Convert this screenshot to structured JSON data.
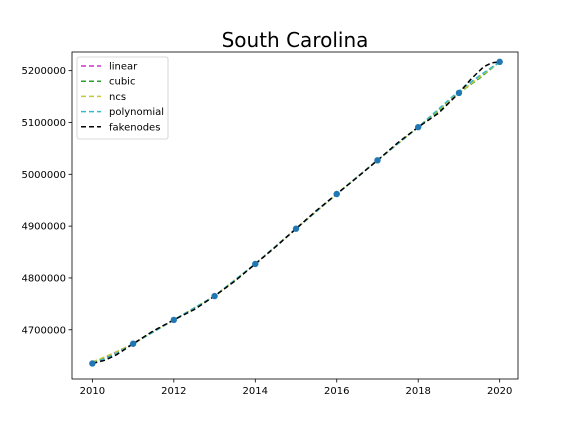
{
  "chart_data": {
    "type": "line",
    "title": "South Carolina",
    "xlabel": "",
    "ylabel": "",
    "xlim": [
      2009.5,
      2020.45
    ],
    "ylim": [
      4605000,
      5236000
    ],
    "x_ticks": [
      2010,
      2012,
      2014,
      2016,
      2018,
      2020
    ],
    "x_tick_labels": [
      "2010",
      "2012",
      "2014",
      "2016",
      "2018",
      "2020"
    ],
    "y_ticks": [
      4700000,
      4800000,
      4900000,
      5000000,
      5100000,
      5200000
    ],
    "y_tick_labels": [
      "4700000",
      "4800000",
      "4900000",
      "5000000",
      "5100000",
      "5200000"
    ],
    "grid": false,
    "legend_position": "upper-left",
    "points": {
      "name": "data",
      "color": "#1f77b4",
      "x": [
        2010,
        2011,
        2012,
        2013,
        2014,
        2015,
        2016,
        2017,
        2018,
        2019,
        2020
      ],
      "y": [
        4635000,
        4673000,
        4719000,
        4765000,
        4827000,
        4895000,
        4962000,
        5027000,
        5091000,
        5157000,
        5217000
      ]
    },
    "series": [
      {
        "name": "linear",
        "color": "#cc33cc",
        "x": [
          2010,
          2011,
          2012,
          2013,
          2014,
          2015,
          2016,
          2017,
          2018,
          2019,
          2020
        ],
        "y": [
          4635000,
          4673000,
          4719000,
          4765000,
          4827000,
          4895000,
          4962000,
          5027000,
          5091000,
          5157000,
          5217000
        ]
      },
      {
        "name": "cubic",
        "color": "#2ca02c",
        "x": [
          2010,
          2010.5,
          2011,
          2011.5,
          2012,
          2013,
          2014,
          2015,
          2016,
          2017,
          2018,
          2018.5,
          2019,
          2019.5,
          2020
        ],
        "y": [
          4635000,
          4651000,
          4673000,
          4697000,
          4719000,
          4765000,
          4827000,
          4895000,
          4962000,
          5027000,
          5091000,
          5122000,
          5157000,
          5185000,
          5217000
        ]
      },
      {
        "name": "ncs",
        "color": "#c8c83a",
        "x": [
          2010,
          2010.5,
          2011,
          2012,
          2013,
          2014,
          2015,
          2016,
          2017,
          2018,
          2019,
          2019.5,
          2020
        ],
        "y": [
          4638000,
          4654000,
          4673000,
          4719000,
          4765000,
          4827000,
          4895000,
          4962000,
          5027000,
          5091000,
          5157000,
          5187000,
          5217000
        ]
      },
      {
        "name": "polynomial",
        "color": "#33bbcc",
        "x": [
          2010,
          2010.5,
          2011,
          2012,
          2013,
          2014,
          2015,
          2016,
          2017,
          2018,
          2018.5,
          2019,
          2019.5,
          2020
        ],
        "y": [
          4635000,
          4650000,
          4673000,
          4719000,
          4765000,
          4827000,
          4895000,
          4962000,
          5027000,
          5091000,
          5126000,
          5161000,
          5190000,
          5217000
        ]
      },
      {
        "name": "fakenodes",
        "color": "#000000",
        "x": [
          2010,
          2010.3,
          2010.6,
          2011,
          2011.5,
          2012,
          2012.5,
          2013,
          2013.5,
          2014,
          2014.5,
          2015,
          2015.5,
          2016,
          2016.5,
          2017,
          2017.5,
          2018,
          2018.5,
          2019,
          2019.3,
          2019.6,
          2019.8,
          2020
        ],
        "y": [
          4635000,
          4641000,
          4652000,
          4673000,
          4698000,
          4719000,
          4739000,
          4765000,
          4794000,
          4827000,
          4860000,
          4895000,
          4930000,
          4962000,
          4994000,
          5027000,
          5061000,
          5091000,
          5118000,
          5157000,
          5184000,
          5207000,
          5215000,
          5217000
        ]
      }
    ]
  }
}
